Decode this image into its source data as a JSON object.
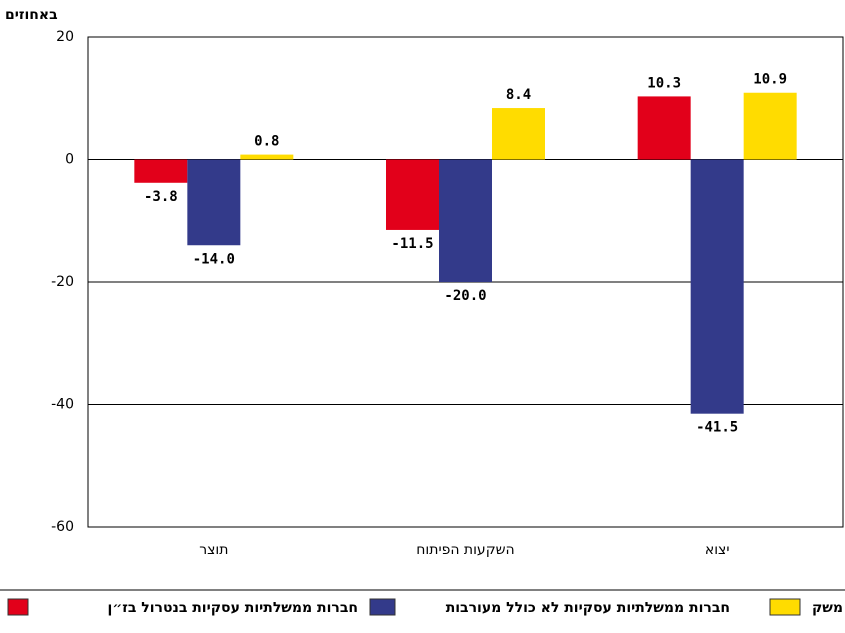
{
  "chart_data": {
    "type": "bar",
    "y_label": "באחוזים",
    "categories": [
      "תוצר",
      "השקעות הפיתוח",
      "יצוא"
    ],
    "series": [
      {
        "name": "חברות ממשלתיות עסקיות בנטרול בז״ן",
        "color": "#e2001a",
        "values": [
          -3.8,
          -11.5,
          10.3
        ],
        "value_labels": [
          "-3.8",
          "-11.5",
          "10.3"
        ]
      },
      {
        "name": "חברות ממשלתיות עסקיות לא כולל מעורבות",
        "color": "#333a8a",
        "values": [
          -14.0,
          -20.0,
          -41.5
        ],
        "value_labels": [
          "-14.0",
          "-20.0",
          "-41.5"
        ]
      },
      {
        "name": "משק",
        "color": "#ffdc00",
        "values": [
          0.8,
          8.4,
          10.9
        ],
        "value_labels": [
          "0.8",
          "8.4",
          "10.9"
        ]
      }
    ],
    "ylim": [
      -60,
      20
    ],
    "yticks": [
      -60,
      -40,
      -20,
      0,
      20
    ],
    "grid": true
  }
}
